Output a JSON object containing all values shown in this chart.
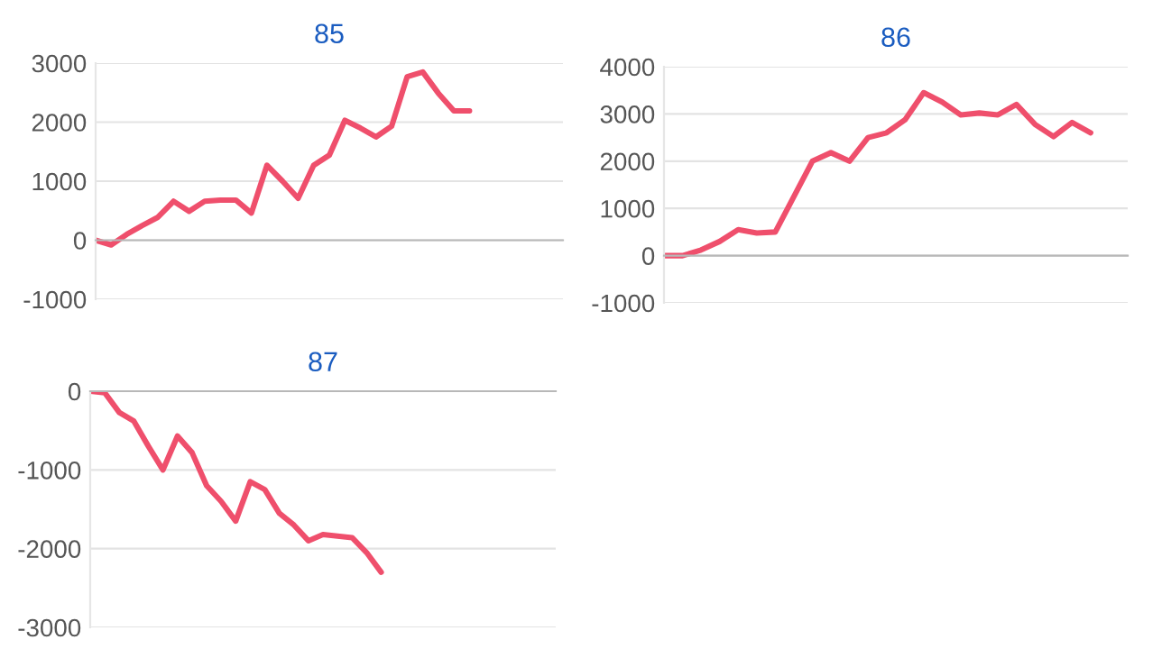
{
  "chart_data": [
    {
      "type": "line",
      "title": "85",
      "categories": [
        null,
        null,
        null,
        null,
        null,
        null,
        null,
        null,
        null,
        null,
        null,
        null,
        null,
        null,
        null,
        null,
        null,
        null,
        null,
        null,
        null,
        null,
        null,
        null,
        null,
        null,
        null,
        null,
        null,
        null,
        null
      ],
      "series": [
        {
          "color": "#ef4f6c",
          "values": [
            0,
            -80,
            100,
            250,
            390,
            660,
            490,
            660,
            680,
            680,
            460,
            1270,
            1000,
            710,
            1270,
            1440,
            2030,
            1900,
            1750,
            1930,
            2770,
            2850,
            2490,
            2190,
            2190,
            null,
            null,
            null,
            null,
            null,
            null
          ]
        }
      ],
      "ylim": [
        -1000,
        3000
      ],
      "yticks": [
        -1000,
        0,
        1000,
        2000,
        3000
      ],
      "grid": "y",
      "tick_labels": "y",
      "marker": "none",
      "line_style": "solid"
    },
    {
      "type": "line",
      "title": "86",
      "categories": [
        null,
        null,
        null,
        null,
        null,
        null,
        null,
        null,
        null,
        null,
        null,
        null,
        null,
        null,
        null,
        null,
        null,
        null,
        null,
        null,
        null,
        null,
        null,
        null,
        null,
        null
      ],
      "series": [
        {
          "color": "#ef4f6c",
          "values": [
            0,
            0,
            120,
            300,
            550,
            480,
            500,
            1250,
            2000,
            2180,
            2000,
            2500,
            2600,
            2880,
            3450,
            3250,
            2980,
            3020,
            2980,
            3200,
            2780,
            2520,
            2820,
            2600,
            null,
            null
          ]
        }
      ],
      "ylim": [
        -1000,
        4000
      ],
      "yticks": [
        -1000,
        0,
        1000,
        2000,
        3000,
        4000
      ],
      "grid": "y",
      "tick_labels": "y",
      "marker": "none",
      "line_style": "solid"
    },
    {
      "type": "line",
      "title": "87",
      "categories": [
        null,
        null,
        null,
        null,
        null,
        null,
        null,
        null,
        null,
        null,
        null,
        null,
        null,
        null,
        null,
        null,
        null,
        null,
        null,
        null,
        null,
        null,
        null,
        null,
        null,
        null,
        null,
        null,
        null,
        null,
        null,
        null,
        null
      ],
      "series": [
        {
          "color": "#ef4f6c",
          "values": [
            0,
            -20,
            -270,
            -380,
            -700,
            -1000,
            -570,
            -780,
            -1200,
            -1400,
            -1650,
            -1150,
            -1250,
            -1550,
            -1700,
            -1900,
            -1820,
            -1840,
            -1860,
            -2050,
            -2300,
            null,
            null,
            null,
            null,
            null,
            null,
            null,
            null,
            null,
            null,
            null,
            null
          ]
        }
      ],
      "ylim": [
        -3000,
        0
      ],
      "yticks": [
        -3000,
        -2000,
        -1000,
        0
      ],
      "grid": "y",
      "tick_labels": "y",
      "marker": "none",
      "line_style": "solid"
    }
  ]
}
